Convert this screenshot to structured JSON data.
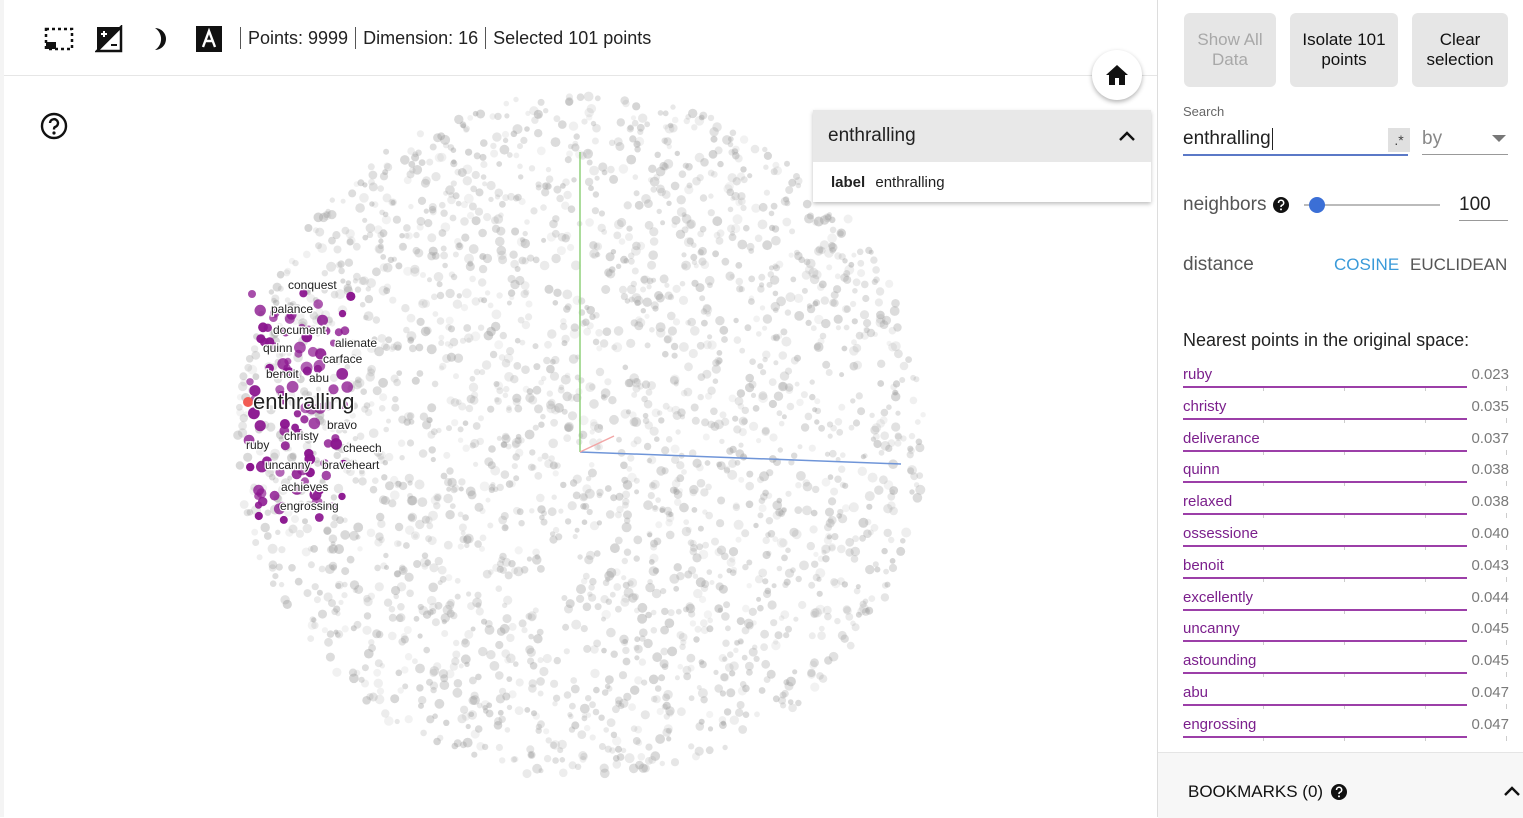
{
  "toolbar": {
    "icons": [
      "box-select-icon",
      "night-mode-icon",
      "crescent-icon",
      "text-label-icon"
    ],
    "points_text": "Points: 9999",
    "dimension_text": "Dimension: 16",
    "selected_text": "Selected 101 points"
  },
  "label_card": {
    "title": "enthralling",
    "field_key": "label",
    "field_value": "enthralling"
  },
  "scatter": {
    "focus_label": "enthralling",
    "neighbor_labels": [
      "conquest",
      "palance",
      "document",
      "quinn",
      "alienate",
      "carface",
      "benoit",
      "abu",
      "bravo",
      "christy",
      "ruby",
      "cheech",
      "uncanny",
      "braveheart",
      "achieves",
      "engrossing"
    ],
    "colors": {
      "selected": "#8b168f",
      "focus": "#f25c54",
      "point": "#9a9a9a",
      "axis_x": "#6f95d8",
      "axis_y": "#8fd07a",
      "axis_z": "#f2a6a6"
    }
  },
  "panel": {
    "show_all_label": "Show All Data",
    "isolate_label": "Isolate 101 points",
    "clear_label": "Clear selection",
    "search_label": "Search",
    "search_value": "enthralling",
    "regex_label": ".*",
    "by_label": "by",
    "neighbors_label": "neighbors",
    "neighbors_value": "100",
    "neighbors_fraction": 0.0,
    "distance_label": "distance",
    "cosine_label": "COSINE",
    "euclidean_label": "EUCLIDEAN",
    "nearest_title": "Nearest points in the original space:",
    "nearest": [
      {
        "word": "ruby",
        "value": "0.023"
      },
      {
        "word": "christy",
        "value": "0.035"
      },
      {
        "word": "deliverance",
        "value": "0.037"
      },
      {
        "word": "quinn",
        "value": "0.038"
      },
      {
        "word": "relaxed",
        "value": "0.038"
      },
      {
        "word": "ossessione",
        "value": "0.040"
      },
      {
        "word": "benoit",
        "value": "0.043"
      },
      {
        "word": "excellently",
        "value": "0.044"
      },
      {
        "word": "uncanny",
        "value": "0.045"
      },
      {
        "word": "astounding",
        "value": "0.045"
      },
      {
        "word": "abu",
        "value": "0.047"
      },
      {
        "word": "engrossing",
        "value": "0.047"
      }
    ],
    "bookmarks_label": "BOOKMARKS (0)",
    "accent_color": "#3a9ad9"
  }
}
